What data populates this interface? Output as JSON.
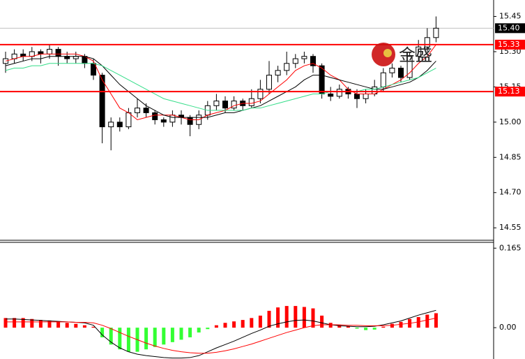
{
  "chart_data": [
    {
      "type": "candlestick",
      "open": [
        15.25,
        15.27,
        15.29,
        15.28,
        15.3,
        15.29,
        15.31,
        15.28,
        15.27,
        15.28,
        15.25,
        15.2,
        14.98,
        15.0,
        14.98,
        15.04,
        15.06,
        15.04,
        15.01,
        15.0,
        15.03,
        15.02,
        14.99,
        15.03,
        15.07,
        15.09,
        15.06,
        15.09,
        15.07,
        15.1,
        15.14,
        15.2,
        15.22,
        15.25,
        15.27,
        15.28,
        15.24,
        15.12,
        15.11,
        15.14,
        15.12,
        15.1,
        15.12,
        15.15,
        15.21,
        15.23,
        15.19,
        15.28,
        15.32,
        15.36
      ],
      "high": [
        15.3,
        15.31,
        15.31,
        15.32,
        15.31,
        15.33,
        15.32,
        15.3,
        15.3,
        15.29,
        15.27,
        15.21,
        15.02,
        15.02,
        15.06,
        15.1,
        15.08,
        15.05,
        15.02,
        15.05,
        15.05,
        15.03,
        15.05,
        15.09,
        15.12,
        15.11,
        15.11,
        15.1,
        15.14,
        15.18,
        15.26,
        15.24,
        15.3,
        15.29,
        15.3,
        15.29,
        15.25,
        15.15,
        15.16,
        15.15,
        15.14,
        15.14,
        15.18,
        15.23,
        15.25,
        15.24,
        15.3,
        15.35,
        15.4,
        15.45
      ],
      "low": [
        15.21,
        15.25,
        15.26,
        15.26,
        15.25,
        15.27,
        15.24,
        15.25,
        15.25,
        15.23,
        15.18,
        14.91,
        14.88,
        14.96,
        14.97,
        15.02,
        15.02,
        14.99,
        14.98,
        14.98,
        14.99,
        14.94,
        14.97,
        15.01,
        15.05,
        15.04,
        15.05,
        15.05,
        15.06,
        15.08,
        15.12,
        15.17,
        15.2,
        15.23,
        15.25,
        15.21,
        15.1,
        15.09,
        15.1,
        15.1,
        15.06,
        15.08,
        15.11,
        15.13,
        15.19,
        15.17,
        15.18,
        15.26,
        15.3,
        15.34
      ],
      "close": [
        15.27,
        15.29,
        15.28,
        15.3,
        15.29,
        15.31,
        15.28,
        15.27,
        15.28,
        15.25,
        15.2,
        14.98,
        15.0,
        14.98,
        15.04,
        15.06,
        15.04,
        15.01,
        15.0,
        15.03,
        15.02,
        14.99,
        15.03,
        15.07,
        15.09,
        15.06,
        15.09,
        15.07,
        15.1,
        15.14,
        15.2,
        15.22,
        15.25,
        15.27,
        15.28,
        15.24,
        15.12,
        15.11,
        15.14,
        15.12,
        15.1,
        15.12,
        15.15,
        15.21,
        15.23,
        15.19,
        15.28,
        15.32,
        15.36,
        15.4
      ],
      "series": [
        {
          "color": "#ff0000",
          "values": [
            15.26,
            15.27,
            15.28,
            15.28,
            15.29,
            15.29,
            15.29,
            15.29,
            15.29,
            15.28,
            15.26,
            15.18,
            15.12,
            15.06,
            15.04,
            15.01,
            15.02,
            15.03,
            15.03,
            15.03,
            15.02,
            15.01,
            15.01,
            15.03,
            15.04,
            15.05,
            15.07,
            15.08,
            15.08,
            15.09,
            15.12,
            15.15,
            15.18,
            15.22,
            15.24,
            15.25,
            15.23,
            15.2,
            15.18,
            15.14,
            15.12,
            15.12,
            15.12,
            15.14,
            15.16,
            15.18,
            15.21,
            15.25,
            15.28,
            15.33
          ]
        },
        {
          "color": "#000000",
          "values": [
            15.24,
            15.25,
            15.26,
            15.27,
            15.27,
            15.28,
            15.28,
            15.28,
            15.28,
            15.28,
            15.27,
            15.24,
            15.2,
            15.16,
            15.13,
            15.1,
            15.07,
            15.05,
            15.03,
            15.02,
            15.02,
            15.02,
            15.02,
            15.02,
            15.03,
            15.04,
            15.04,
            15.05,
            15.06,
            15.07,
            15.09,
            15.11,
            15.13,
            15.15,
            15.18,
            15.2,
            15.2,
            15.19,
            15.18,
            15.17,
            15.16,
            15.15,
            15.14,
            15.14,
            15.15,
            15.16,
            15.17,
            15.19,
            15.22,
            15.26
          ]
        },
        {
          "color": "#33dd88",
          "values": [
            15.22,
            15.23,
            15.23,
            15.24,
            15.24,
            15.25,
            15.25,
            15.25,
            15.25,
            15.25,
            15.25,
            15.24,
            15.22,
            15.2,
            15.18,
            15.16,
            15.14,
            15.12,
            15.1,
            15.09,
            15.08,
            15.07,
            15.06,
            15.05,
            15.05,
            15.05,
            15.05,
            15.05,
            15.06,
            15.06,
            15.07,
            15.08,
            15.09,
            15.1,
            15.11,
            15.12,
            15.12,
            15.13,
            15.13,
            15.13,
            15.13,
            15.14,
            15.14,
            15.15,
            15.16,
            15.17,
            15.18,
            15.19,
            15.21,
            15.23
          ]
        }
      ],
      "levels": [
        15.33,
        15.13
      ],
      "level_color": "#ff0000",
      "last_price": {
        "value": 15.4,
        "label": "15.40"
      },
      "watermark": "金盛",
      "ylim": [
        14.5,
        15.52
      ],
      "yticks": [
        15.45,
        {
          "value": 15.3,
          "label": "15.30"
        },
        15.15,
        {
          "value": 15.0,
          "label": "15.00"
        },
        14.85,
        {
          "value": 14.7,
          "label": "14.70"
        },
        14.55
      ]
    },
    {
      "type": "macd",
      "values": [
        0.02,
        0.02,
        0.02,
        0.018,
        0.016,
        0.015,
        0.012,
        0.01,
        0.008,
        0.005,
        0.002,
        -0.02,
        -0.035,
        -0.045,
        -0.05,
        -0.05,
        -0.045,
        -0.04,
        -0.035,
        -0.03,
        -0.025,
        -0.02,
        -0.01,
        -0.003,
        0.005,
        0.01,
        0.013,
        0.016,
        0.02,
        0.025,
        0.035,
        0.042,
        0.045,
        0.045,
        0.043,
        0.04,
        0.025,
        0.01,
        0.005,
        0.003,
        -0.002,
        -0.005,
        -0.004,
        0.002,
        0.008,
        0.012,
        0.018,
        0.022,
        0.027,
        0.03
      ],
      "pos_color": "#ff0000",
      "neg_color": "#33ff33",
      "series": [
        {
          "color": "#000000",
          "values": [
            0.018,
            0.018,
            0.017,
            0.016,
            0.015,
            0.014,
            0.013,
            0.012,
            0.011,
            0.01,
            0.005,
            -0.015,
            -0.03,
            -0.042,
            -0.05,
            -0.055,
            -0.058,
            -0.06,
            -0.062,
            -0.063,
            -0.063,
            -0.062,
            -0.058,
            -0.05,
            -0.042,
            -0.035,
            -0.028,
            -0.02,
            -0.012,
            -0.005,
            0.003,
            0.008,
            0.012,
            0.015,
            0.016,
            0.014,
            0.01,
            0.006,
            0.004,
            0.003,
            0.002,
            0.002,
            0.003,
            0.006,
            0.01,
            0.014,
            0.02,
            0.026,
            0.031,
            0.036
          ]
        },
        {
          "color": "#ff0000",
          "values": [
            0.012,
            0.012,
            0.012,
            0.012,
            0.012,
            0.012,
            0.012,
            0.012,
            0.011,
            0.011,
            0.01,
            0.005,
            -0.002,
            -0.01,
            -0.018,
            -0.025,
            -0.032,
            -0.038,
            -0.043,
            -0.047,
            -0.05,
            -0.052,
            -0.053,
            -0.053,
            -0.051,
            -0.048,
            -0.044,
            -0.039,
            -0.034,
            -0.028,
            -0.022,
            -0.016,
            -0.01,
            -0.005,
            0,
            0.004,
            0.006,
            0.006,
            0.006,
            0.005,
            0.005,
            0.004,
            0.004,
            0.004,
            0.005,
            0.007,
            0.009,
            0.012,
            0.016,
            0.02
          ]
        }
      ],
      "ylim": [
        -0.065,
        0.177
      ],
      "yticks": [
        0.165,
        {
          "value": 0,
          "label": "0.00"
        }
      ]
    }
  ]
}
